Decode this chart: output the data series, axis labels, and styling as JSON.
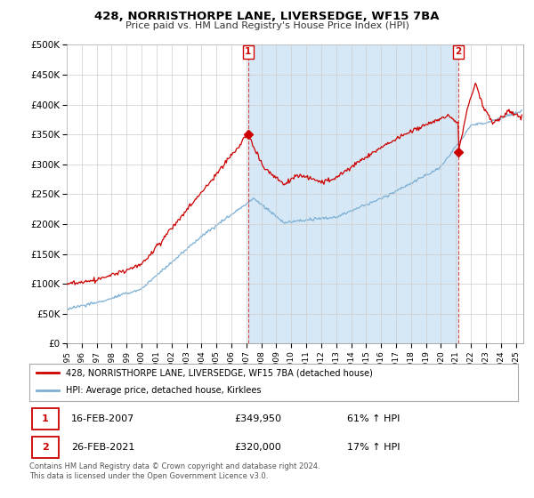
{
  "title": "428, NORRISTHORPE LANE, LIVERSEDGE, WF15 7BA",
  "subtitle": "Price paid vs. HM Land Registry's House Price Index (HPI)",
  "ylim": [
    0,
    500000
  ],
  "yticks": [
    0,
    50000,
    100000,
    150000,
    200000,
    250000,
    300000,
    350000,
    400000,
    450000,
    500000
  ],
  "ytick_labels": [
    "£0",
    "£50K",
    "£100K",
    "£150K",
    "£200K",
    "£250K",
    "£300K",
    "£350K",
    "£400K",
    "£450K",
    "£500K"
  ],
  "xlim_start": 1995.0,
  "xlim_end": 2025.5,
  "red_line_color": "#cc0000",
  "blue_line_color": "#7bafd4",
  "fill_color": "#d6e8f5",
  "sale1_x": 2007.12,
  "sale1_y": 349950,
  "sale2_x": 2021.15,
  "sale2_y": 320000,
  "legend_line1": "428, NORRISTHORPE LANE, LIVERSEDGE, WF15 7BA (detached house)",
  "legend_line2": "HPI: Average price, detached house, Kirklees",
  "table_row1_num": "1",
  "table_row1_date": "16-FEB-2007",
  "table_row1_price": "£349,950",
  "table_row1_hpi": "61% ↑ HPI",
  "table_row2_num": "2",
  "table_row2_date": "26-FEB-2021",
  "table_row2_price": "£320,000",
  "table_row2_hpi": "17% ↑ HPI",
  "footer": "Contains HM Land Registry data © Crown copyright and database right 2024.\nThis data is licensed under the Open Government Licence v3.0.",
  "background_color": "#ffffff",
  "grid_color": "#cccccc"
}
